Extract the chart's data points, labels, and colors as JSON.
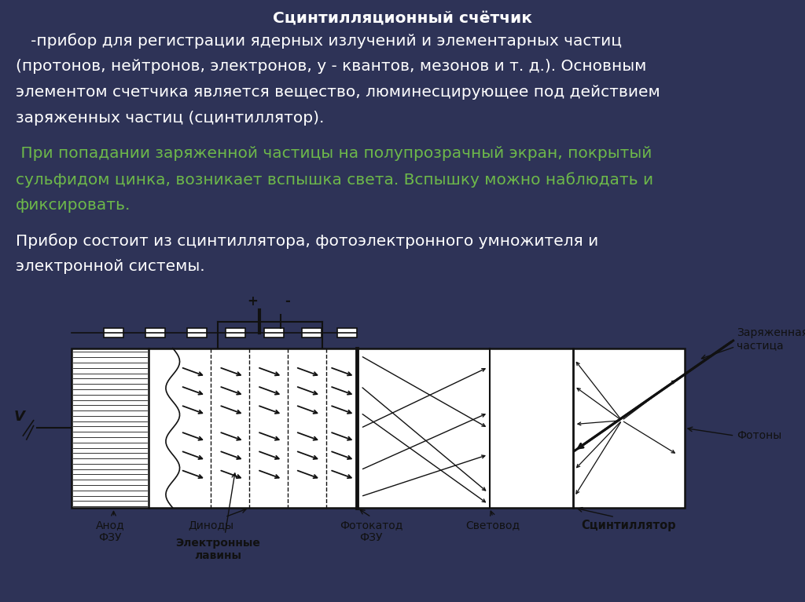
{
  "title": "Сцинтилляционный счётчик",
  "bg_color": "#2e3357",
  "diagram_bg": "#e8e8e0",
  "white_text_color": "#ffffff",
  "green_text_color": "#6db84a",
  "black_text_color": "#111111",
  "para1_line1": "   -прибор для регистрации ядерных излучений и элементарных частиц",
  "para1_line2": "(протонов, нейтронов, электронов, у - квантов, мезонов и т. д.). Основным",
  "para1_line3": "элементом счетчика является вещество, люминесцирующее под действием",
  "para1_line4": "заряженных частиц (сцинтиллятор).",
  "para2_line1": " При попадании заряженной частицы на полупрозрачный экран, покрытый",
  "para2_line2": "сульфидом цинка, возникает вспышка света. Вспышку можно наблюдать и",
  "para2_line3": "фиксировать.",
  "para3_line1": "Прибор состоит из сцинтиллятора, фотоэлектронного умножителя и",
  "para3_line2": "электронной системы."
}
